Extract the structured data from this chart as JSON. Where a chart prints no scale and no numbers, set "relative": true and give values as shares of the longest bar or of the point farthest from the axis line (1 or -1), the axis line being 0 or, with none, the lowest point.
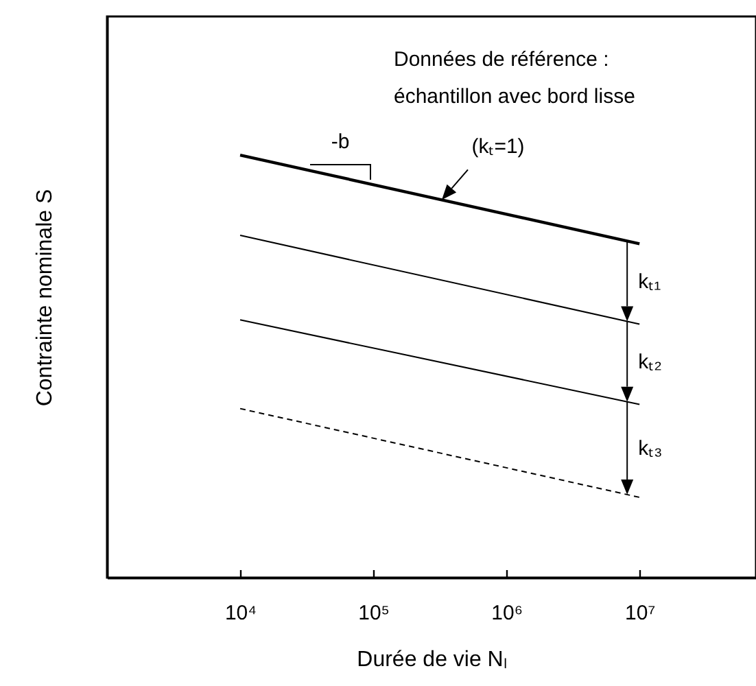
{
  "chart_data": {
    "type": "line",
    "relative": true,
    "log": "x",
    "xlabel": "Durée de vie Nₗ",
    "ylabel": "Contrainte nominale S",
    "xlim": [
      1000,
      75000000
    ],
    "xticks": [
      {
        "value": 10000,
        "label": "10⁴"
      },
      {
        "value": 100000,
        "label": "10⁵"
      },
      {
        "value": 1000000,
        "label": "10⁶"
      },
      {
        "value": 10000000,
        "label": "10⁷"
      }
    ],
    "x": [
      10000,
      10000000
    ],
    "series": [
      {
        "color": "#000000",
        "values": [
          1,
          0.79
        ]
      },
      {
        "color": "#000000",
        "values": [
          0.81,
          0.6
        ]
      },
      {
        "color": "#000000",
        "values": [
          0.61,
          0.41
        ]
      },
      {
        "color": "#000000",
        "values": [
          0.4,
          0.19
        ],
        "line_style": "dashed"
      }
    ],
    "annotations": [
      "Données de référence :\néchantillon avec bord lisse",
      "-b",
      "(kₜ=1)",
      "kₜ₁",
      "kₜ₂",
      "kₜ₃"
    ]
  }
}
